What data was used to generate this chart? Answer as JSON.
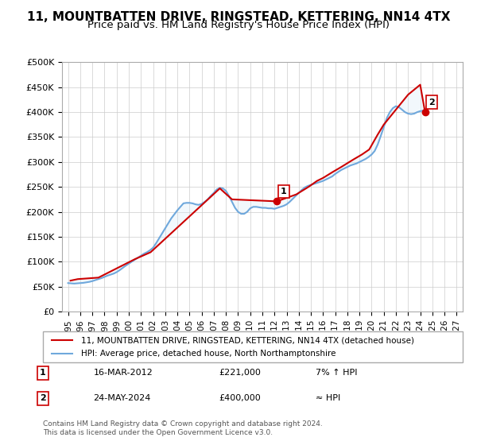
{
  "title": "11, MOUNTBATTEN DRIVE, RINGSTEAD, KETTERING, NN14 4TX",
  "subtitle": "Price paid vs. HM Land Registry's House Price Index (HPI)",
  "xlabel": "",
  "ylabel": "",
  "ylim": [
    0,
    500000
  ],
  "yticks": [
    0,
    50000,
    100000,
    150000,
    200000,
    250000,
    300000,
    350000,
    400000,
    450000,
    500000
  ],
  "ytick_labels": [
    "£0",
    "£50K",
    "£100K",
    "£150K",
    "£200K",
    "£250K",
    "£300K",
    "£350K",
    "£400K",
    "£450K",
    "£500K"
  ],
  "xlim_start": 1994.5,
  "xlim_end": 2027.5,
  "xticks": [
    1995,
    1996,
    1997,
    1998,
    1999,
    2000,
    2001,
    2002,
    2003,
    2004,
    2005,
    2006,
    2007,
    2008,
    2009,
    2010,
    2011,
    2012,
    2013,
    2014,
    2015,
    2016,
    2017,
    2018,
    2019,
    2020,
    2021,
    2022,
    2023,
    2024,
    2025,
    2026,
    2027
  ],
  "hpi_color": "#6fa8dc",
  "price_color": "#cc0000",
  "marker_color_1": "#cc0000",
  "marker_color_2": "#cc0000",
  "shaded_color": "#d6e8f7",
  "background_color": "#ffffff",
  "grid_color": "#cccccc",
  "title_fontsize": 11,
  "subtitle_fontsize": 9.5,
  "legend_label_1": "11, MOUNTBATTEN DRIVE, RINGSTEAD, KETTERING, NN14 4TX (detached house)",
  "legend_label_2": "HPI: Average price, detached house, North Northamptonshire",
  "annotation_1_label": "1",
  "annotation_1_date": "16-MAR-2012",
  "annotation_1_price": "£221,000",
  "annotation_1_hpi": "7% ↑ HPI",
  "annotation_2_label": "2",
  "annotation_2_date": "24-MAY-2024",
  "annotation_2_price": "£400,000",
  "annotation_2_hpi": "≈ HPI",
  "footer": "Contains HM Land Registry data © Crown copyright and database right 2024.\nThis data is licensed under the Open Government Licence v3.0.",
  "hpi_data_x": [
    1995.0,
    1995.25,
    1995.5,
    1995.75,
    1996.0,
    1996.25,
    1996.5,
    1996.75,
    1997.0,
    1997.25,
    1997.5,
    1997.75,
    1998.0,
    1998.25,
    1998.5,
    1998.75,
    1999.0,
    1999.25,
    1999.5,
    1999.75,
    2000.0,
    2000.25,
    2000.5,
    2000.75,
    2001.0,
    2001.25,
    2001.5,
    2001.75,
    2002.0,
    2002.25,
    2002.5,
    2002.75,
    2003.0,
    2003.25,
    2003.5,
    2003.75,
    2004.0,
    2004.25,
    2004.5,
    2004.75,
    2005.0,
    2005.25,
    2005.5,
    2005.75,
    2006.0,
    2006.25,
    2006.5,
    2006.75,
    2007.0,
    2007.25,
    2007.5,
    2007.75,
    2008.0,
    2008.25,
    2008.5,
    2008.75,
    2009.0,
    2009.25,
    2009.5,
    2009.75,
    2010.0,
    2010.25,
    2010.5,
    2010.75,
    2011.0,
    2011.25,
    2011.5,
    2011.75,
    2012.0,
    2012.25,
    2012.5,
    2012.75,
    2013.0,
    2013.25,
    2013.5,
    2013.75,
    2014.0,
    2014.25,
    2014.5,
    2014.75,
    2015.0,
    2015.25,
    2015.5,
    2015.75,
    2016.0,
    2016.25,
    2016.5,
    2016.75,
    2017.0,
    2017.25,
    2017.5,
    2017.75,
    2018.0,
    2018.25,
    2018.5,
    2018.75,
    2019.0,
    2019.25,
    2019.5,
    2019.75,
    2020.0,
    2020.25,
    2020.5,
    2020.75,
    2021.0,
    2021.25,
    2021.5,
    2021.75,
    2022.0,
    2022.25,
    2022.5,
    2022.75,
    2023.0,
    2023.25,
    2023.5,
    2023.75,
    2024.0,
    2024.25
  ],
  "hpi_data_y": [
    57000,
    56500,
    56000,
    56500,
    57000,
    57500,
    58500,
    59500,
    61000,
    63000,
    65000,
    67000,
    69500,
    72000,
    74000,
    76000,
    79000,
    83000,
    87500,
    92000,
    96000,
    100000,
    104000,
    108000,
    112000,
    116000,
    119000,
    123000,
    128000,
    137000,
    147000,
    157000,
    167000,
    177000,
    187000,
    195000,
    203000,
    210000,
    217000,
    218000,
    218000,
    217000,
    215000,
    214000,
    216000,
    220000,
    225000,
    232000,
    238000,
    245000,
    248000,
    247000,
    242000,
    232000,
    220000,
    208000,
    200000,
    196000,
    196000,
    200000,
    207000,
    210000,
    210000,
    209000,
    208000,
    208000,
    207000,
    207000,
    206000,
    208000,
    210000,
    212000,
    215000,
    220000,
    226000,
    232000,
    238000,
    244000,
    249000,
    252000,
    254000,
    256000,
    258000,
    260000,
    262000,
    265000,
    268000,
    271000,
    276000,
    280000,
    284000,
    287000,
    290000,
    293000,
    295000,
    297000,
    300000,
    303000,
    306000,
    310000,
    315000,
    322000,
    335000,
    352000,
    370000,
    388000,
    400000,
    408000,
    412000,
    410000,
    405000,
    400000,
    397000,
    396000,
    397000,
    400000,
    402000,
    403000
  ],
  "price_data_x": [
    1995.2,
    1995.8,
    1997.5,
    2000.5,
    2001.8,
    2007.5,
    2008.5,
    2012.2,
    2013.8,
    2014.8,
    2015.5,
    2016.0,
    2016.8,
    2017.5,
    2018.5,
    2019.2,
    2019.8,
    2020.5,
    2021.0,
    2021.5,
    2022.0,
    2022.5,
    2023.0,
    2023.5,
    2024.0,
    2024.4
  ],
  "price_data_y": [
    62000,
    65000,
    68000,
    105000,
    119000,
    247000,
    225000,
    221000,
    235000,
    250000,
    262000,
    268000,
    280000,
    290000,
    305000,
    315000,
    325000,
    355000,
    375000,
    390000,
    405000,
    420000,
    435000,
    445000,
    455000,
    400000
  ],
  "sale_1_x": 2012.2,
  "sale_1_y": 221000,
  "sale_2_x": 2024.4,
  "sale_2_y": 400000
}
